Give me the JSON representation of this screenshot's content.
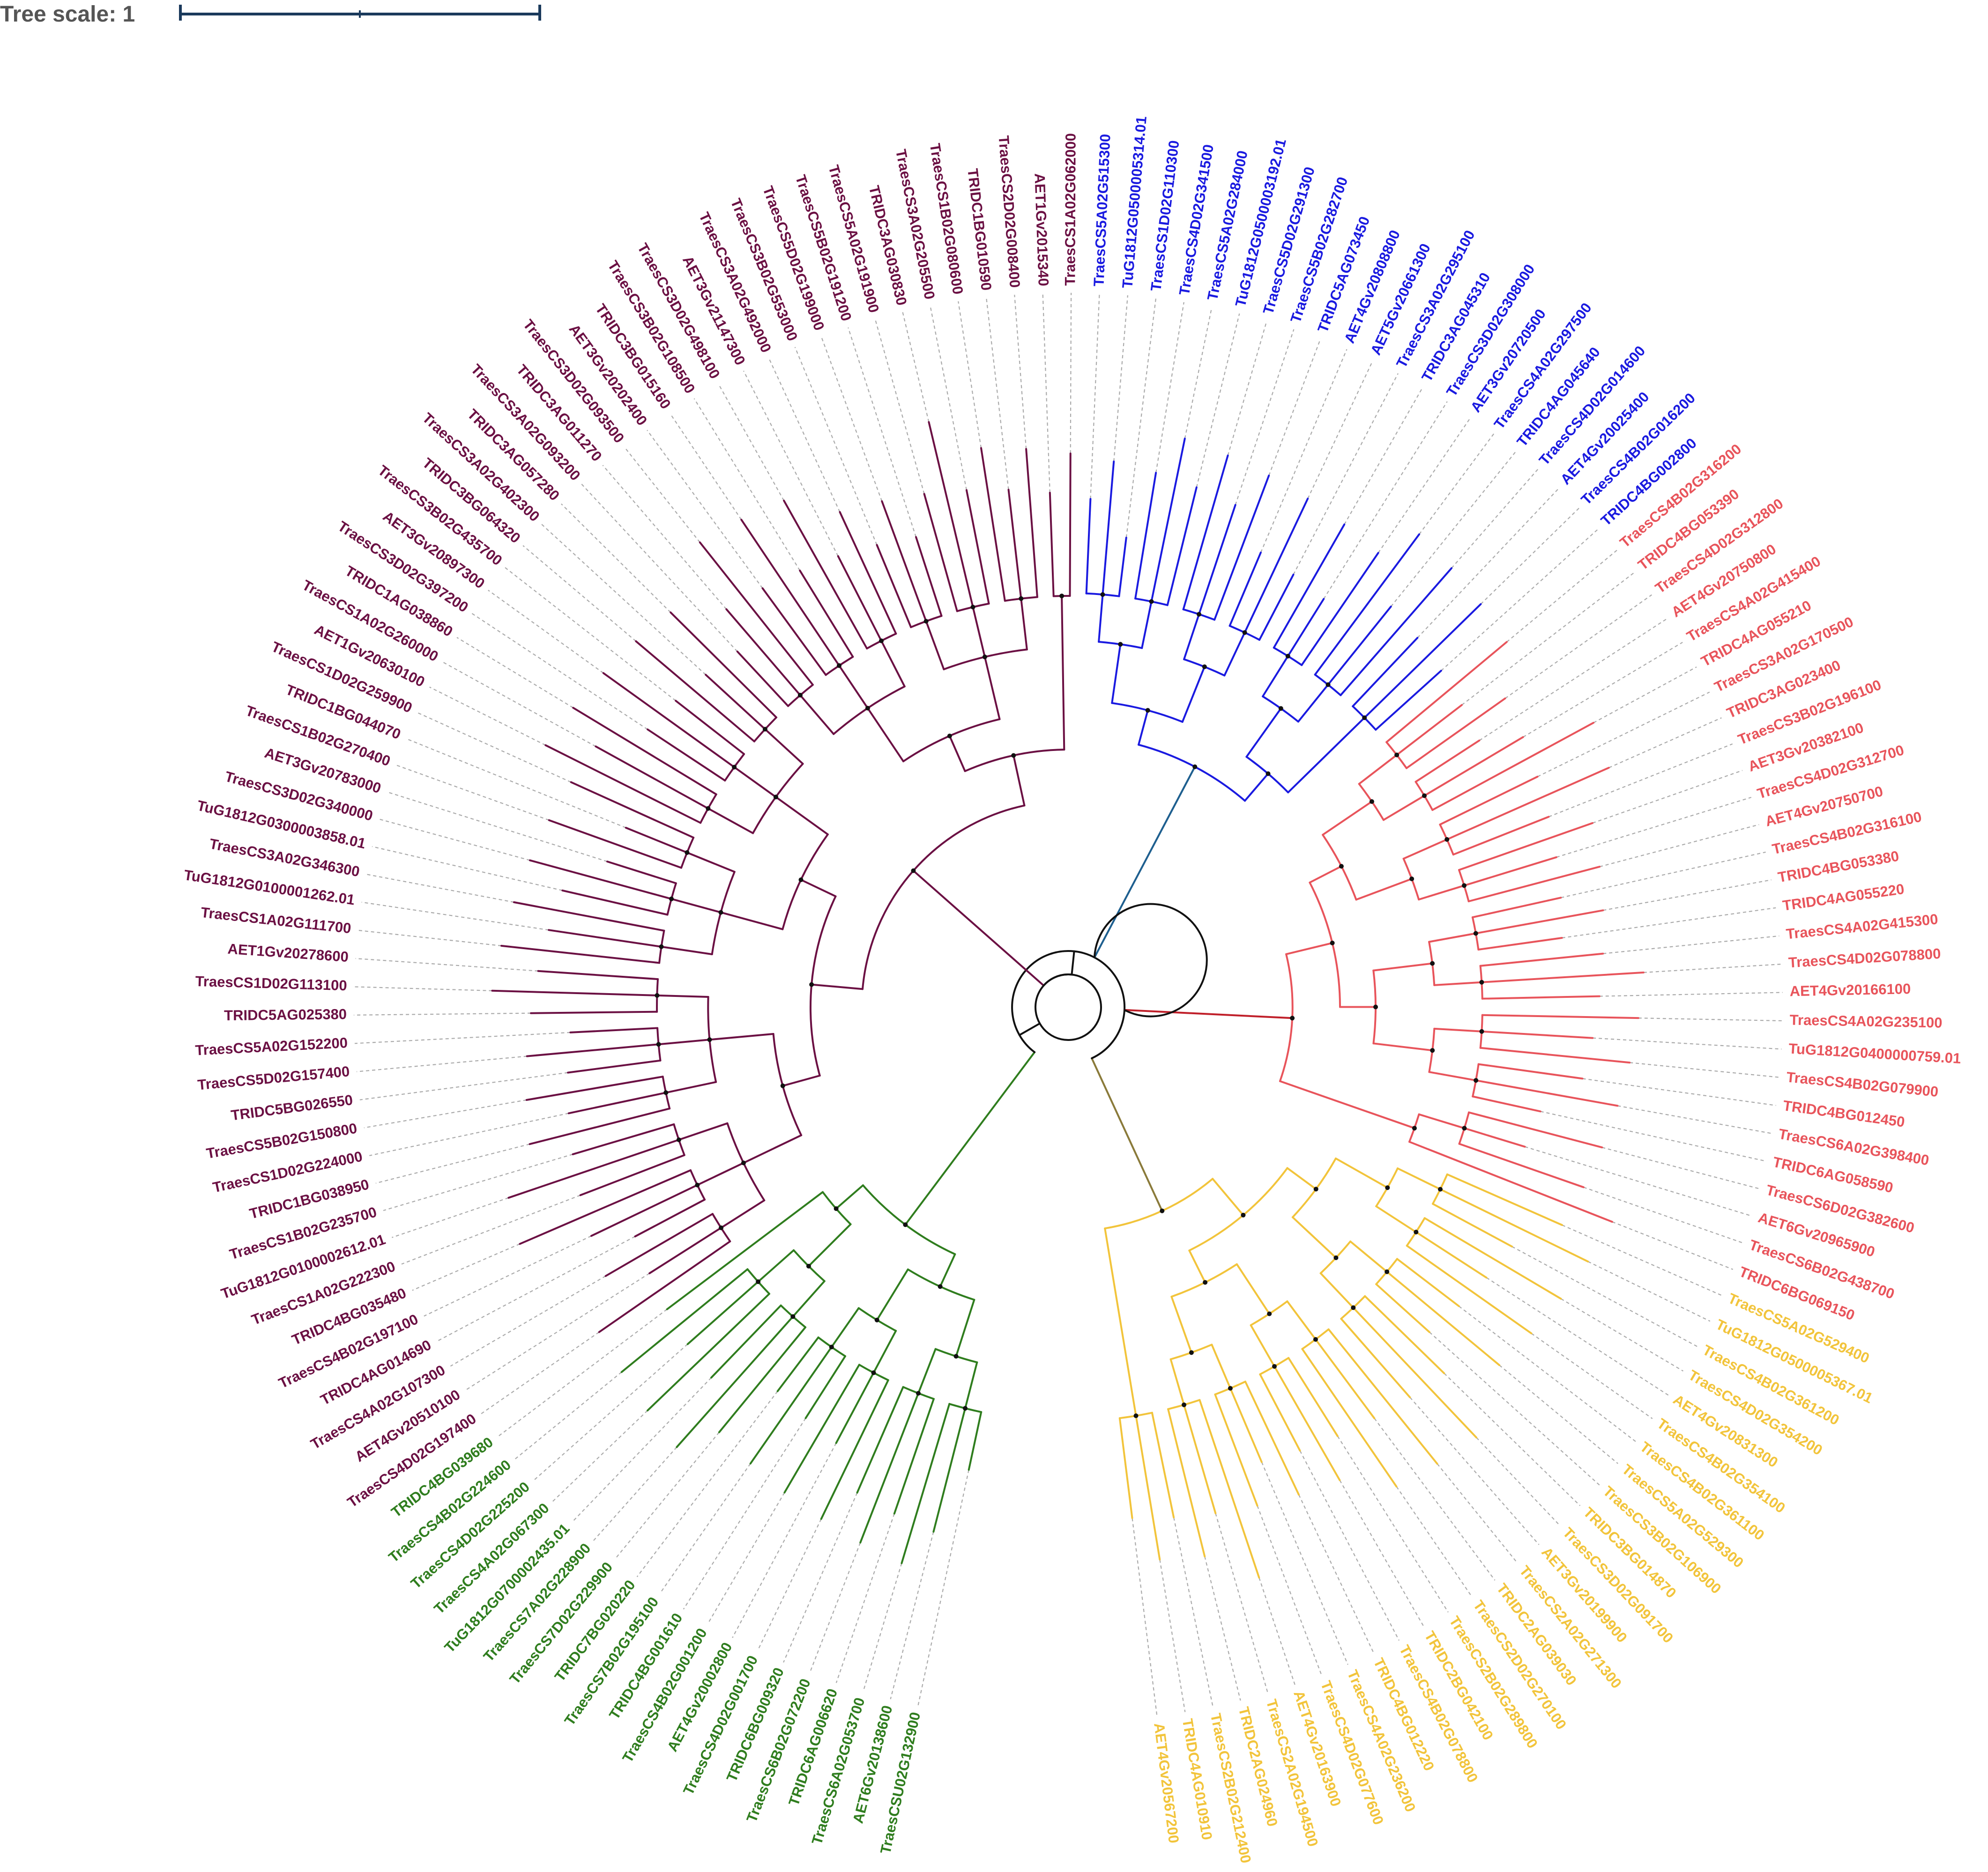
{
  "scale": {
    "label": "Tree scale: 1"
  },
  "clades": [
    {
      "id": "green",
      "color": "#2f7d1e",
      "leaves": [
        "TraesCSU02G132900",
        "AET6Gv20138600",
        "TraesCS6A02G053700",
        "TRIDC6AG006620",
        "TraesCS6B02G072200",
        "TRIDC6BG009320",
        "TraesCS4D02G001700",
        "AET4Gv20002800",
        "TraesCS4B02G001200",
        "TRIDC4BG001610",
        "TraesCS7B02G195100",
        "TRIDC7BG020220",
        "TraesCS7D02G229900",
        "TraesCS7A02G228900",
        "TuG1812G0700002435.01",
        "TraesCS4A02G067300",
        "TraesCS4D02G225200",
        "TraesCS4B02G224600",
        "TRIDC4BG039680"
      ]
    },
    {
      "id": "maroon",
      "color": "#6b1043",
      "leaves": [
        "TraesCS4D02G197400",
        "AET4Gv20510100",
        "TraesCS4A02G107300",
        "TRIDC4AG014690",
        "TraesCS4B02G197100",
        "TRIDC4BG035480",
        "TraesCS1A02G222300",
        "TuG1812G0100002612.01",
        "TraesCS1B02G235700",
        "TRIDC1BG038950",
        "TraesCS1D02G224000",
        "TraesCS5B02G150800",
        "TRIDC5BG026550",
        "TraesCS5D02G157400",
        "TraesCS5A02G152200",
        "TRIDC5AG025380",
        "TraesCS1D02G113100",
        "AET1Gv20278600",
        "TraesCS1A02G111700",
        "TuG1812G0100001262.01",
        "TraesCS3A02G346300",
        "TuG1812G0300003858.01",
        "TraesCS3D02G340000",
        "AET3Gv20783000",
        "TraesCS1B02G270400",
        "TRIDC1BG044070",
        "TraesCS1D02G259900",
        "AET1Gv20630100",
        "TraesCS1A02G260000",
        "TRIDC1AG038860",
        "TraesCS3D02G397200",
        "AET3Gv20897300",
        "TraesCS3B02G435700",
        "TRIDC3BG064320",
        "TraesCS3A02G402300",
        "TRIDC3AG057280",
        "TraesCS3A02G093200",
        "TRIDC3AG011270",
        "TraesCS3D02G093500",
        "AET3Gv20202400",
        "TRIDC3BG015160",
        "TraesCS3B02G108500",
        "TraesCS3D02G498100",
        "AET3Gv21147300",
        "TraesCS3A02G492000",
        "TraesCS3B02G553000",
        "TraesCS5D02G199000",
        "TraesCS5B02G191200",
        "TraesCS5A02G191900",
        "TRIDC3AG030830",
        "TraesCS3A02G205500",
        "TraesCS1B02G080600",
        "TRIDC1BG010590",
        "TraesCS2D02G008400",
        "AET1Gv2015340",
        "TraesCS1A02G062000"
      ]
    },
    {
      "id": "blue",
      "color": "#1a1ae0",
      "leaves": [
        "TraesCS5A02G515300",
        "TuG1812G0500005314.01",
        "TraesCS1D02G110300",
        "TraesCS4D02G341500",
        "TraesCS5A02G284000",
        "TuG1812G0500003192.01",
        "TraesCS5D02G291300",
        "TraesCS5B02G282700",
        "TRIDC5AG073450",
        "AET4Gv20808800",
        "AET5Gv20661300",
        "TraesCS3A02G295100",
        "TRIDC3AG045310",
        "TraesCS3D02G308000",
        "AET3Gv20720500",
        "TraesCS4A02G297500",
        "TRIDC4AG045640",
        "TraesCS4D02G014600",
        "AET4Gv20025400",
        "TraesCS4B02G016200",
        "TRIDC4BG002800"
      ]
    },
    {
      "id": "red",
      "color": "#e8545b",
      "leaves": [
        "TraesCS4B02G316200",
        "TRIDC4BG053390",
        "TraesCS4D02G312800",
        "AET4Gv20750800",
        "TraesCS4A02G415400",
        "TRIDC4AG055210",
        "TraesCS3A02G170500",
        "TRIDC3AG023400",
        "TraesCS3B02G196100",
        "AET3Gv20382100",
        "TraesCS4D02G312700",
        "AET4Gv20750700",
        "TraesCS4B02G316100",
        "TRIDC4BG053380",
        "TRIDC4AG055220",
        "TraesCS4A02G415300",
        "TraesCS4D02G078800",
        "AET4Gv20166100",
        "TraesCS4A02G235100",
        "TuG1812G0400000759.01",
        "TraesCS4B02G079900",
        "TRIDC4BG012450",
        "TraesCS6A02G398400",
        "TRIDC6AG058590",
        "TraesCS6D02G382600",
        "AET6Gv20965900",
        "TraesCS6B02G438700",
        "TRIDC6BG069150"
      ]
    },
    {
      "id": "yellow",
      "color": "#f2c43b",
      "leaves": [
        "TraesCS5A02G529400",
        "TuG1812G0500005367.01",
        "TraesCS4B02G361200",
        "TraesCS4D02G354200",
        "AET4Gv20831300",
        "TraesCS4B02G354100",
        "TraesCS4B02G361100",
        "TraesCS5A02G529300",
        "TraesCS3B02G106900",
        "TRIDC3BG014870",
        "TraesCS3D02G091700",
        "AET3Gv20199900",
        "TraesCS2A02G271300",
        "TRIDC2AG039030",
        "TraesCS2D02G270100",
        "TraesCS2B02G289800",
        "TRIDC2BG042100",
        "TraesCS4B02G078800",
        "TRIDC4BG012220",
        "TraesCS4A02G236200",
        "TraesCS4D02G077600",
        "AET4Gv20163900",
        "TraesCS2A02G194500",
        "TRIDC2AG024960",
        "TraesCS2B02G212400",
        "TRIDC4AG010910",
        "AET4Gv20567200"
      ]
    }
  ],
  "backbone_color": "#111111",
  "guide_color": "#aaaaaa"
}
